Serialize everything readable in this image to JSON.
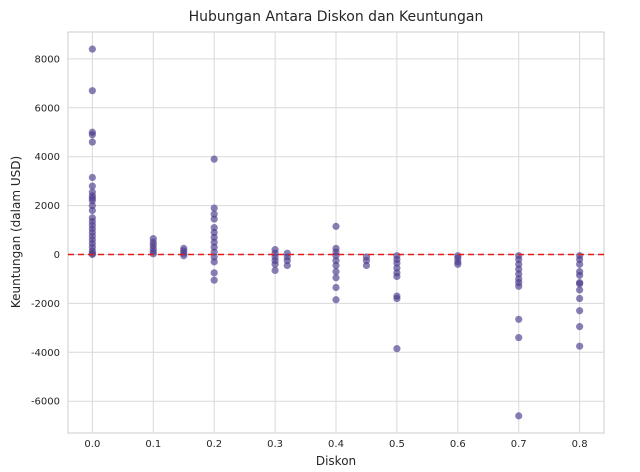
{
  "chart_data": {
    "type": "scatter",
    "title": "Hubungan Antara Diskon dan Keuntungan",
    "xlabel": "Diskon",
    "ylabel": "Keuntungan (dalam USD)",
    "xlim": [
      -0.04,
      0.84
    ],
    "ylim": [
      -7300,
      9100
    ],
    "xticks": [
      0.0,
      0.1,
      0.2,
      0.3,
      0.4,
      0.5,
      0.6,
      0.7,
      0.8
    ],
    "xtick_labels": [
      "0.0",
      "0.1",
      "0.2",
      "0.3",
      "0.4",
      "0.5",
      "0.6",
      "0.7",
      "0.8"
    ],
    "yticks": [
      -6000,
      -4000,
      -2000,
      0,
      2000,
      4000,
      6000,
      8000
    ],
    "ytick_labels": [
      "-6000",
      "-4000",
      "-2000",
      "0",
      "2000",
      "4000",
      "6000",
      "8000"
    ],
    "grid": true,
    "reference_line": {
      "y": 0,
      "style": "dashed",
      "color": "#e31a1c"
    },
    "point_color": "#4b3b8c",
    "points": [
      {
        "x": 0.0,
        "y": 8400
      },
      {
        "x": 0.0,
        "y": 6700
      },
      {
        "x": 0.0,
        "y": 5000
      },
      {
        "x": 0.0,
        "y": 4900
      },
      {
        "x": 0.0,
        "y": 4600
      },
      {
        "x": 0.0,
        "y": 3150
      },
      {
        "x": 0.0,
        "y": 2800
      },
      {
        "x": 0.0,
        "y": 2550
      },
      {
        "x": 0.0,
        "y": 2400
      },
      {
        "x": 0.0,
        "y": 2300
      },
      {
        "x": 0.0,
        "y": 2200
      },
      {
        "x": 0.0,
        "y": 2000
      },
      {
        "x": 0.0,
        "y": 1800
      },
      {
        "x": 0.0,
        "y": 1500
      },
      {
        "x": 0.0,
        "y": 1350
      },
      {
        "x": 0.0,
        "y": 1200
      },
      {
        "x": 0.0,
        "y": 1050
      },
      {
        "x": 0.0,
        "y": 900
      },
      {
        "x": 0.0,
        "y": 750
      },
      {
        "x": 0.0,
        "y": 600
      },
      {
        "x": 0.0,
        "y": 450
      },
      {
        "x": 0.0,
        "y": 300
      },
      {
        "x": 0.0,
        "y": 150
      },
      {
        "x": 0.0,
        "y": 50
      },
      {
        "x": 0.0,
        "y": 0
      },
      {
        "x": 0.1,
        "y": 650
      },
      {
        "x": 0.1,
        "y": 500
      },
      {
        "x": 0.1,
        "y": 380
      },
      {
        "x": 0.1,
        "y": 250
      },
      {
        "x": 0.1,
        "y": 130
      },
      {
        "x": 0.1,
        "y": 30
      },
      {
        "x": 0.15,
        "y": 250
      },
      {
        "x": 0.15,
        "y": 150
      },
      {
        "x": 0.15,
        "y": 50
      },
      {
        "x": 0.15,
        "y": -50
      },
      {
        "x": 0.2,
        "y": 3900
      },
      {
        "x": 0.2,
        "y": 1900
      },
      {
        "x": 0.2,
        "y": 1650
      },
      {
        "x": 0.2,
        "y": 1450
      },
      {
        "x": 0.2,
        "y": 1100
      },
      {
        "x": 0.2,
        "y": 900
      },
      {
        "x": 0.2,
        "y": 700
      },
      {
        "x": 0.2,
        "y": 500
      },
      {
        "x": 0.2,
        "y": 300
      },
      {
        "x": 0.2,
        "y": 100
      },
      {
        "x": 0.2,
        "y": -100
      },
      {
        "x": 0.2,
        "y": -300
      },
      {
        "x": 0.2,
        "y": -750
      },
      {
        "x": 0.2,
        "y": -1050
      },
      {
        "x": 0.3,
        "y": 200
      },
      {
        "x": 0.3,
        "y": 50
      },
      {
        "x": 0.3,
        "y": -100
      },
      {
        "x": 0.3,
        "y": -250
      },
      {
        "x": 0.3,
        "y": -400
      },
      {
        "x": 0.3,
        "y": -650
      },
      {
        "x": 0.32,
        "y": 50
      },
      {
        "x": 0.32,
        "y": -100
      },
      {
        "x": 0.32,
        "y": -250
      },
      {
        "x": 0.32,
        "y": -450
      },
      {
        "x": 0.4,
        "y": 1150
      },
      {
        "x": 0.4,
        "y": 250
      },
      {
        "x": 0.4,
        "y": 100
      },
      {
        "x": 0.4,
        "y": -50
      },
      {
        "x": 0.4,
        "y": -250
      },
      {
        "x": 0.4,
        "y": -450
      },
      {
        "x": 0.4,
        "y": -700
      },
      {
        "x": 0.4,
        "y": -950
      },
      {
        "x": 0.4,
        "y": -1350
      },
      {
        "x": 0.4,
        "y": -1850
      },
      {
        "x": 0.45,
        "y": -100
      },
      {
        "x": 0.45,
        "y": -250
      },
      {
        "x": 0.45,
        "y": -450
      },
      {
        "x": 0.5,
        "y": -50
      },
      {
        "x": 0.5,
        "y": -200
      },
      {
        "x": 0.5,
        "y": -350
      },
      {
        "x": 0.5,
        "y": -550
      },
      {
        "x": 0.5,
        "y": -750
      },
      {
        "x": 0.5,
        "y": -900
      },
      {
        "x": 0.5,
        "y": -1700
      },
      {
        "x": 0.5,
        "y": -1800
      },
      {
        "x": 0.5,
        "y": -3850
      },
      {
        "x": 0.6,
        "y": -50
      },
      {
        "x": 0.6,
        "y": -150
      },
      {
        "x": 0.6,
        "y": -300
      },
      {
        "x": 0.6,
        "y": -400
      },
      {
        "x": 0.7,
        "y": -50
      },
      {
        "x": 0.7,
        "y": -200
      },
      {
        "x": 0.7,
        "y": -400
      },
      {
        "x": 0.7,
        "y": -600
      },
      {
        "x": 0.7,
        "y": -800
      },
      {
        "x": 0.7,
        "y": -1000
      },
      {
        "x": 0.7,
        "y": -1150
      },
      {
        "x": 0.7,
        "y": -1300
      },
      {
        "x": 0.7,
        "y": -2650
      },
      {
        "x": 0.7,
        "y": -3400
      },
      {
        "x": 0.7,
        "y": -6600
      },
      {
        "x": 0.8,
        "y": -50
      },
      {
        "x": 0.8,
        "y": -200
      },
      {
        "x": 0.8,
        "y": -400
      },
      {
        "x": 0.8,
        "y": -700
      },
      {
        "x": 0.8,
        "y": -850
      },
      {
        "x": 0.8,
        "y": -1150
      },
      {
        "x": 0.8,
        "y": -1200
      },
      {
        "x": 0.8,
        "y": -1450
      },
      {
        "x": 0.8,
        "y": -1800
      },
      {
        "x": 0.8,
        "y": -2300
      },
      {
        "x": 0.8,
        "y": -2950
      },
      {
        "x": 0.8,
        "y": -3750
      }
    ]
  }
}
